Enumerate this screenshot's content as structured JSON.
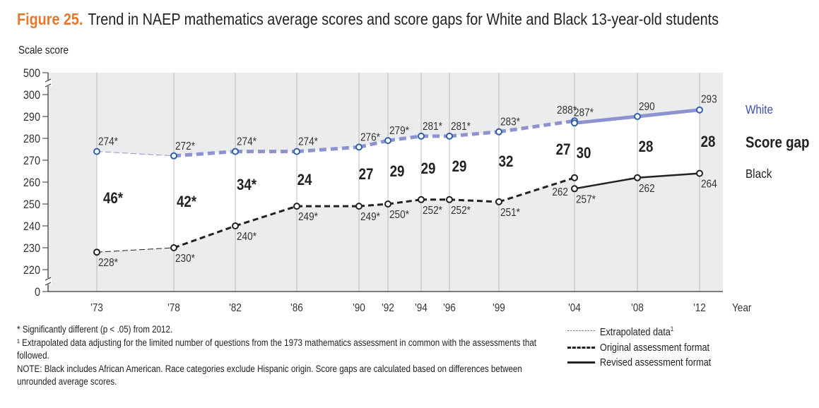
{
  "title": {
    "figure": "Figure 25.",
    "text": "Trend in NAEP mathematics average scores and score gaps for White and Black 13-year-old students"
  },
  "chart_data": {
    "type": "line",
    "ylabel": "Scale score",
    "xlabel": "Year",
    "yticks": [
      "500",
      "300",
      "290",
      "280",
      "270",
      "260",
      "250",
      "240",
      "230",
      "220",
      "0"
    ],
    "ylim_broken": [
      220,
      300
    ],
    "x": [
      "'73",
      "'78",
      "'82",
      "'86",
      "'90",
      "'92",
      "'94",
      "'96",
      "'99",
      "'04",
      "'08",
      "'12"
    ],
    "series": [
      {
        "name": "White",
        "color": "#8c93d0",
        "points": [
          {
            "year": "'73",
            "value": 274,
            "label": "274*",
            "format": "extrapolated"
          },
          {
            "year": "'78",
            "value": 272,
            "label": "272*",
            "format": "original"
          },
          {
            "year": "'82",
            "value": 274,
            "label": "274*",
            "format": "original"
          },
          {
            "year": "'86",
            "value": 274,
            "label": "274*",
            "format": "original"
          },
          {
            "year": "'90",
            "value": 276,
            "label": "276*",
            "format": "original"
          },
          {
            "year": "'92",
            "value": 279,
            "label": "279*",
            "format": "original"
          },
          {
            "year": "'94",
            "value": 281,
            "label": "281*",
            "format": "original"
          },
          {
            "year": "'96",
            "value": 281,
            "label": "281*",
            "format": "original"
          },
          {
            "year": "'99",
            "value": 283,
            "label": "283*",
            "format": "original"
          },
          {
            "year": "'04",
            "value": 288,
            "label": "288*",
            "format": "original"
          },
          {
            "year": "'04",
            "value": 287,
            "label": "287*",
            "format": "revised"
          },
          {
            "year": "'08",
            "value": 290,
            "label": "290",
            "format": "revised"
          },
          {
            "year": "'12",
            "value": 293,
            "label": "293",
            "format": "revised"
          }
        ]
      },
      {
        "name": "Black",
        "color": "#222222",
        "points": [
          {
            "year": "'73",
            "value": 228,
            "label": "228*",
            "format": "extrapolated"
          },
          {
            "year": "'78",
            "value": 230,
            "label": "230*",
            "format": "original"
          },
          {
            "year": "'82",
            "value": 240,
            "label": "240*",
            "format": "original"
          },
          {
            "year": "'86",
            "value": 249,
            "label": "249*",
            "format": "original"
          },
          {
            "year": "'90",
            "value": 249,
            "label": "249*",
            "format": "original"
          },
          {
            "year": "'92",
            "value": 250,
            "label": "250*",
            "format": "original"
          },
          {
            "year": "'94",
            "value": 252,
            "label": "252*",
            "format": "original"
          },
          {
            "year": "'96",
            "value": 252,
            "label": "252*",
            "format": "original"
          },
          {
            "year": "'99",
            "value": 251,
            "label": "251*",
            "format": "original"
          },
          {
            "year": "'04",
            "value": 262,
            "label": "262",
            "format": "original"
          },
          {
            "year": "'04",
            "value": 257,
            "label": "257*",
            "format": "revised"
          },
          {
            "year": "'08",
            "value": 262,
            "label": "262",
            "format": "revised"
          },
          {
            "year": "'12",
            "value": 264,
            "label": "264",
            "format": "revised"
          }
        ]
      }
    ],
    "score_gaps": [
      {
        "year": "'73",
        "label": "46*"
      },
      {
        "year": "'78",
        "label": "42*"
      },
      {
        "year": "'82",
        "label": "34*"
      },
      {
        "year": "'86",
        "label": "24"
      },
      {
        "year": "'90",
        "label": "27"
      },
      {
        "year": "'92",
        "label": "29"
      },
      {
        "year": "'94",
        "label": "29"
      },
      {
        "year": "'96",
        "label": "29"
      },
      {
        "year": "'99",
        "label": "32"
      },
      {
        "year": "'04",
        "label": "27"
      },
      {
        "year": "'04",
        "label": "30"
      },
      {
        "year": "'08",
        "label": "28"
      },
      {
        "year": "'12",
        "label": "28"
      }
    ],
    "series_labels": {
      "white": "White",
      "gap": "Score gap",
      "black": "Black"
    }
  },
  "legend": {
    "extrapolated": "Extrapolated data",
    "extrapolated_sup": "1",
    "original": "Original assessment format",
    "revised": "Revised assessment format"
  },
  "notes": {
    "significance": "* Significantly different (p < .05) from 2012.",
    "footnote1": "¹ Extrapolated data adjusting for the limited number of questions from the 1973 mathematics assessment in common with the assessments that followed.",
    "note": "NOTE: Black includes African American. Race categories exclude Hispanic origin. Score gaps are calculated based on differences between unrounded average scores."
  }
}
